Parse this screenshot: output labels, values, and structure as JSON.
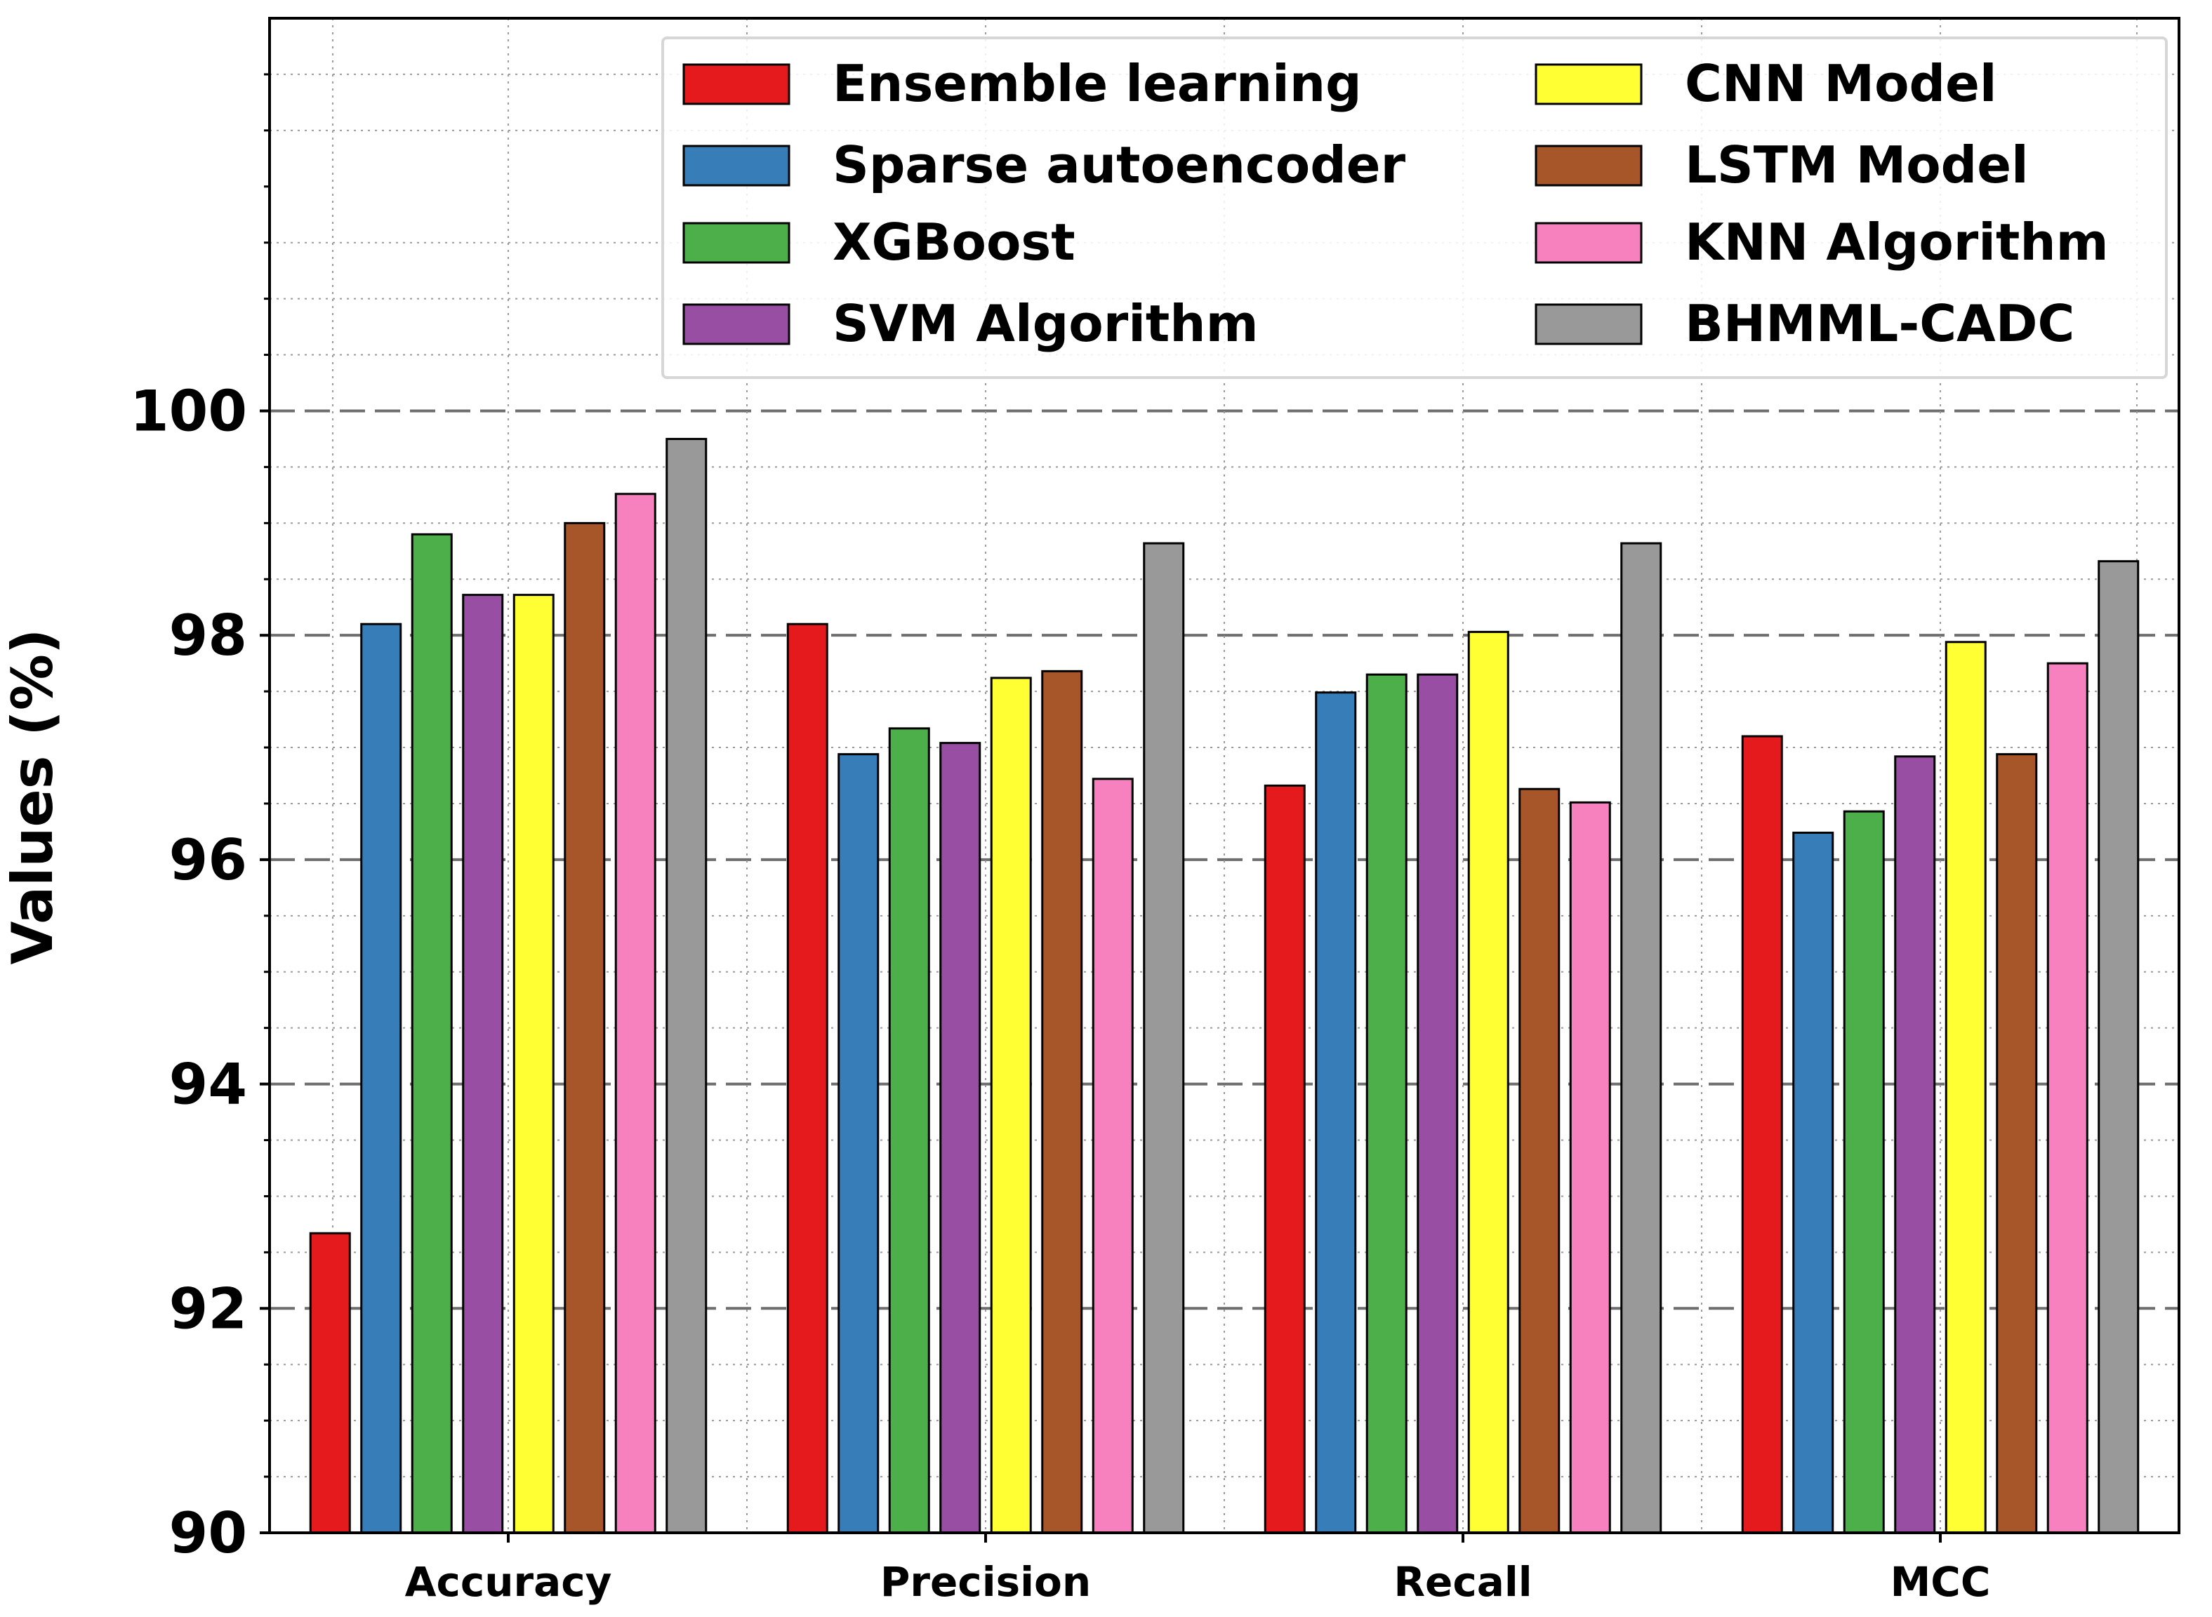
{
  "chart_data": {
    "type": "bar",
    "title": "",
    "xlabel": "",
    "ylabel": "Values (%)",
    "ylim": [
      90,
      103.5
    ],
    "yticks": [
      90,
      92,
      94,
      96,
      98,
      100
    ],
    "grid": true,
    "legend_position": "top-right",
    "categories": [
      "Accuracy",
      "Precision",
      "Recall",
      "MCC"
    ],
    "series": [
      {
        "name": "Ensemble learning",
        "color": "#e41a1c",
        "values": [
          92.67,
          98.1,
          96.66,
          97.1
        ]
      },
      {
        "name": "Sparse autoencoder",
        "color": "#377eb8",
        "values": [
          98.1,
          96.94,
          97.49,
          96.24
        ]
      },
      {
        "name": "XGBoost",
        "color": "#4daf4a",
        "values": [
          98.9,
          97.17,
          97.65,
          96.43
        ]
      },
      {
        "name": "SVM Algorithm",
        "color": "#984ea3",
        "values": [
          98.36,
          97.04,
          97.65,
          96.92
        ]
      },
      {
        "name": "CNN Model",
        "color": "#ffff33",
        "values": [
          98.36,
          97.62,
          98.03,
          97.94
        ]
      },
      {
        "name": "LSTM Model",
        "color": "#a65628",
        "values": [
          99.0,
          97.68,
          96.63,
          96.94
        ]
      },
      {
        "name": "KNN Algorithm",
        "color": "#f781bf",
        "values": [
          99.26,
          96.72,
          96.51,
          97.75
        ]
      },
      {
        "name": "BHMML-CADC",
        "color": "#999999",
        "values": [
          99.75,
          98.82,
          98.82,
          98.66
        ]
      }
    ]
  }
}
